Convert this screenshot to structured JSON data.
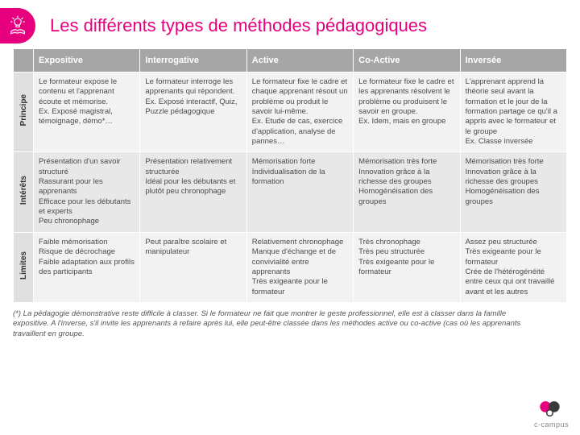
{
  "title": "Les différents types de méthodes pédagogiques",
  "columns": [
    "Expositive",
    "Interrogative",
    "Active",
    "Co-Active",
    "Inversée"
  ],
  "rows": [
    {
      "label": "Principe",
      "cells": [
        "Le formateur expose le contenu et l'apprenant écoute et mémorise.\nEx. Exposé magistral, témoignage, démo*…",
        "Le formateur interroge les apprenants qui répondent.\nEx. Exposé interactif, Quiz, Puzzle pédagogique",
        "Le formateur fixe le cadre et chaque apprenant résout un problème ou produit le savoir lui-même.\nEx. Etude de cas, exercice d'application, analyse de pannes…",
        "Le formateur fixe le cadre et les apprenants résolvent le problème ou produisent le savoir en groupe.\nEx. Idem, mais en groupe",
        "L'apprenant apprend la théorie seul avant la formation et le jour de la formation partage ce qu'il a appris avec le formateur et le groupe\nEx. Classe inversée"
      ]
    },
    {
      "label": "Intérêts",
      "cells": [
        "Présentation d'un savoir structuré\nRassurant pour les apprenants\nEfficace pour les débutants et experts\nPeu chronophage",
        "Présentation relativement structurée\nIdéal pour les débutants et plutôt peu chronophage",
        "Mémorisation forte\nIndividualisation de la formation",
        "Mémorisation très forte\nInnovation grâce à la richesse des groupes\nHomogénéisation des groupes",
        "Mémorisation très forte\nInnovation grâce à la richesse des groupes\nHomogénéisation des groupes"
      ]
    },
    {
      "label": "Limites",
      "cells": [
        "Faible mémorisation\nRisque de décrochage\nFaible adaptation aux profils des participants",
        "Peut paraître scolaire et manipulateur",
        "Relativement chronophage\nManque d'échange et de convivialité entre apprenants\nTrès exigeante pour le formateur",
        "Très chronophage\nTrès peu structurée\nTrès exigeante pour le formateur",
        "Assez peu structurée\nTrès exigeante pour le formateur\nCrée de l'hétérogénéité entre ceux qui ont travaillé avant et les autres"
      ]
    }
  ],
  "footnote": "(*) La pédagogie démonstrative reste difficile à classer. Si le formateur ne fait que montrer le geste professionnel, elle est à classer dans la famille expositive. A l'inverse, s'il invite les apprenants à refaire après lui, elle peut-être classée dans les méthodes active ou co-active (cas où les apprenants travaillent en groupe.",
  "logo_text": "c-campus",
  "colors": {
    "accent": "#e6007e",
    "header_bg": "#a6a6a6",
    "row_head_bg": "#e0e0e0",
    "band_a": "#f2f2f2",
    "band_b": "#e8e8e8",
    "logo_dark": "#3a3a3a"
  }
}
